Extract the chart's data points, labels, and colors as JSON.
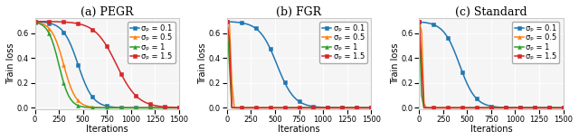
{
  "title_a": "(a) PEGR",
  "title_b": "(b) FGR",
  "title_c": "(c) Standard",
  "ylabel": "Train loss",
  "xlabel": "Iterations",
  "xlim": [
    0,
    1500
  ],
  "ylim": [
    -0.01,
    0.72
  ],
  "yticks": [
    0.0,
    0.2,
    0.4,
    0.6
  ],
  "xticks": [
    0,
    250,
    500,
    750,
    1000,
    1250,
    1500
  ],
  "colors": [
    "#1f77b4",
    "#ff7f0e",
    "#2ca02c",
    "#d62728"
  ],
  "sigma_labels": [
    "σₚ = 0.1",
    "σₚ = 0.5",
    "σₚ = 1",
    "σₚ = 1.5"
  ],
  "markersize": 2.8,
  "linewidth": 1.1,
  "subplot_title_fontsize": 9,
  "axis_label_fontsize": 7,
  "tick_fontsize": 6,
  "legend_fontsize": 6.0,
  "pegr_params": [
    [
      450,
      0.013
    ],
    [
      300,
      0.016
    ],
    [
      250,
      0.018
    ],
    [
      850,
      0.009
    ]
  ],
  "fgr_params": [
    [
      520,
      0.011
    ],
    [
      45,
      0.18
    ],
    [
      25,
      0.3
    ],
    [
      30,
      0.25
    ]
  ],
  "std_params": [
    [
      420,
      0.012
    ],
    [
      35,
      0.2
    ],
    [
      20,
      0.35
    ],
    [
      25,
      0.28
    ]
  ]
}
